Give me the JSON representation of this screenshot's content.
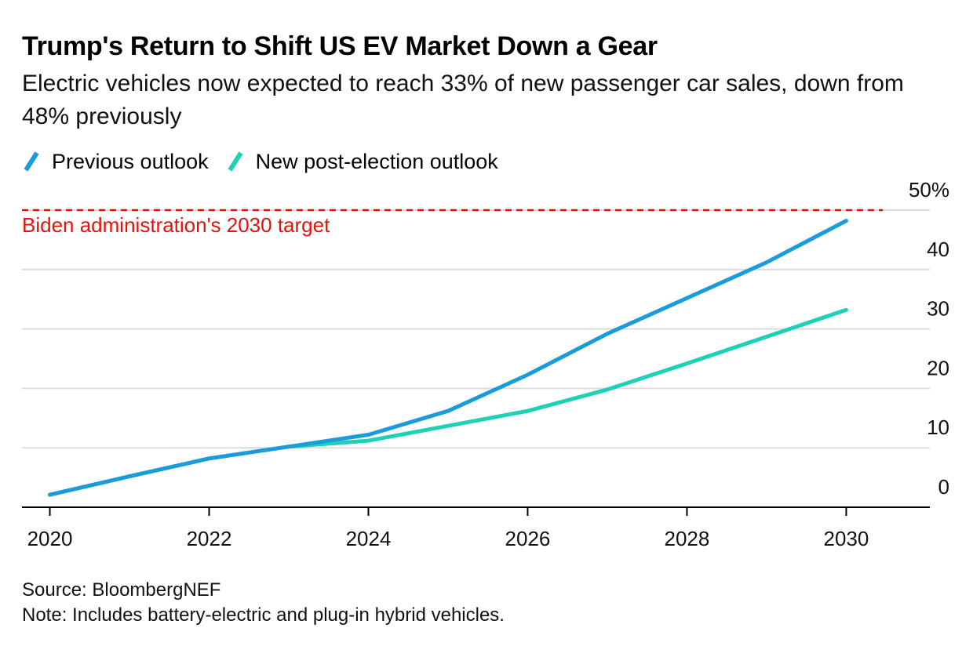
{
  "chart_data": {
    "type": "line",
    "title": "Trump's Return to Shift US EV Market Down a Gear",
    "subtitle": "Electric vehicles now expected to reach 33% of new passenger car sales, down from 48% previously",
    "x_ticks": [
      "2020",
      "2022",
      "2024",
      "2026",
      "2028",
      "2030"
    ],
    "y_ticks": [
      "50%",
      "40",
      "30",
      "20",
      "10",
      "0"
    ],
    "y_tick_values": [
      50,
      40,
      30,
      20,
      10,
      0
    ],
    "x_tick_values": [
      2020,
      2022,
      2024,
      2026,
      2028,
      2030
    ],
    "xlim": [
      2019.65,
      2031.05
    ],
    "ylim": [
      0,
      50
    ],
    "grid": true,
    "legend_position": "top-left",
    "series": [
      {
        "name": "Previous outlook",
        "color": "#1a9bdb",
        "x": [
          2020,
          2021,
          2022,
          2023,
          2024,
          2025,
          2026,
          2027,
          2028,
          2029,
          2030
        ],
        "y": [
          2.1,
          5.2,
          8.2,
          10.2,
          12.2,
          16.2,
          22.3,
          29.2,
          35.2,
          41.2,
          48.2
        ]
      },
      {
        "name": "New post-election outlook",
        "color": "#1fd1b4",
        "x": [
          2020,
          2021,
          2022,
          2023,
          2024,
          2025,
          2026,
          2027,
          2028,
          2029,
          2030
        ],
        "y": [
          2.1,
          5.2,
          8.2,
          10.2,
          11.2,
          13.7,
          16.2,
          19.8,
          24.2,
          28.7,
          33.2
        ]
      }
    ],
    "reference_line": {
      "label": "Biden administration's 2030 target",
      "value": 50,
      "color": "#e3120b"
    }
  },
  "footer": {
    "source": "Source: BloombergNEF",
    "note": "Note: Includes battery-electric and plug-in hybrid vehicles."
  }
}
